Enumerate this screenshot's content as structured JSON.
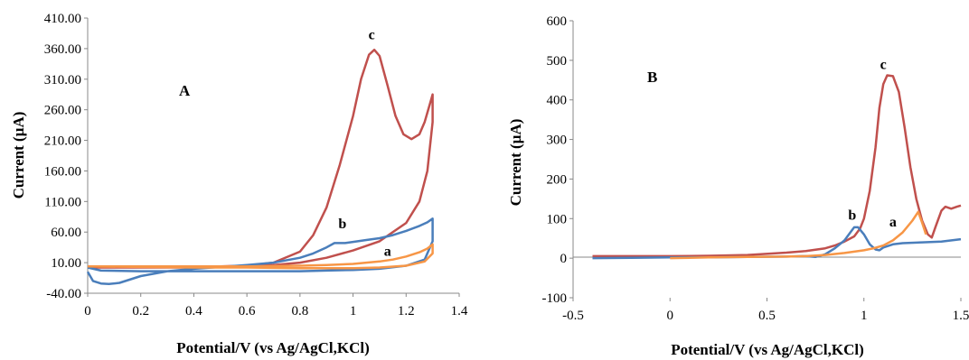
{
  "chart_data": [
    {
      "panel": "A",
      "type": "line",
      "xlabel": "Potential/V (vs Ag/AgCl,KCl)",
      "ylabel": "Current (µA)",
      "xlim": [
        0,
        1.4
      ],
      "ylim": [
        -40,
        410
      ],
      "x_ticks": [
        "0",
        "0.2",
        "0.4",
        "0.6",
        "0.8",
        "1",
        "1.2",
        "1.4"
      ],
      "y_ticks": [
        "-40.00",
        "10.00",
        "60.00",
        "110.00",
        "160.00",
        "210.00",
        "260.00",
        "310.00",
        "360.00",
        "410.00"
      ],
      "grid": false,
      "series": [
        {
          "name": "c",
          "color": "#c0504d",
          "points": [
            [
              0.0,
              2
            ],
            [
              0.1,
              3
            ],
            [
              0.2,
              3
            ],
            [
              0.3,
              3
            ],
            [
              0.4,
              3
            ],
            [
              0.5,
              4
            ],
            [
              0.6,
              5
            ],
            [
              0.7,
              10
            ],
            [
              0.8,
              28
            ],
            [
              0.85,
              55
            ],
            [
              0.9,
              100
            ],
            [
              0.95,
              170
            ],
            [
              1.0,
              250
            ],
            [
              1.03,
              310
            ],
            [
              1.06,
              350
            ],
            [
              1.08,
              358
            ],
            [
              1.1,
              348
            ],
            [
              1.13,
              300
            ],
            [
              1.16,
              250
            ],
            [
              1.19,
              220
            ],
            [
              1.22,
              212
            ],
            [
              1.25,
              220
            ],
            [
              1.27,
              240
            ],
            [
              1.29,
              270
            ],
            [
              1.3,
              285
            ],
            [
              1.3,
              240
            ],
            [
              1.28,
              160
            ],
            [
              1.25,
              110
            ],
            [
              1.2,
              75
            ],
            [
              1.1,
              45
            ],
            [
              1.0,
              30
            ],
            [
              0.9,
              18
            ],
            [
              0.8,
              10
            ],
            [
              0.7,
              6
            ],
            [
              0.6,
              4
            ],
            [
              0.5,
              3
            ],
            [
              0.4,
              2
            ],
            [
              0.3,
              2
            ],
            [
              0.2,
              2
            ],
            [
              0.1,
              2
            ],
            [
              0.0,
              2
            ]
          ],
          "label": "c",
          "label_pos": [
            1.07,
            375
          ]
        },
        {
          "name": "b",
          "color": "#4a7ebb",
          "points": [
            [
              0.0,
              -5
            ],
            [
              0.02,
              -20
            ],
            [
              0.05,
              -24
            ],
            [
              0.08,
              -25
            ],
            [
              0.12,
              -23
            ],
            [
              0.2,
              -12
            ],
            [
              0.3,
              -4
            ],
            [
              0.4,
              0
            ],
            [
              0.5,
              3
            ],
            [
              0.6,
              6
            ],
            [
              0.7,
              10
            ],
            [
              0.8,
              18
            ],
            [
              0.85,
              25
            ],
            [
              0.9,
              35
            ],
            [
              0.93,
              42
            ],
            [
              0.97,
              42
            ],
            [
              1.0,
              44
            ],
            [
              1.05,
              47
            ],
            [
              1.1,
              50
            ],
            [
              1.15,
              55
            ],
            [
              1.2,
              62
            ],
            [
              1.25,
              70
            ],
            [
              1.28,
              76
            ],
            [
              1.3,
              82
            ],
            [
              1.3,
              45
            ],
            [
              1.27,
              15
            ],
            [
              1.2,
              5
            ],
            [
              1.1,
              0
            ],
            [
              1.0,
              -2
            ],
            [
              0.9,
              -3
            ],
            [
              0.8,
              -4
            ],
            [
              0.6,
              -4
            ],
            [
              0.4,
              -4
            ],
            [
              0.2,
              -4
            ],
            [
              0.05,
              -3
            ],
            [
              0.0,
              2
            ]
          ],
          "label": "b",
          "label_pos": [
            0.96,
            66
          ]
        },
        {
          "name": "a",
          "color": "#f79646",
          "points": [
            [
              0.0,
              4
            ],
            [
              0.2,
              4
            ],
            [
              0.4,
              4
            ],
            [
              0.6,
              4
            ],
            [
              0.8,
              5
            ],
            [
              0.9,
              6
            ],
            [
              1.0,
              8
            ],
            [
              1.05,
              10
            ],
            [
              1.1,
              12
            ],
            [
              1.15,
              15
            ],
            [
              1.2,
              20
            ],
            [
              1.25,
              27
            ],
            [
              1.28,
              33
            ],
            [
              1.3,
              40
            ],
            [
              1.3,
              25
            ],
            [
              1.27,
              12
            ],
            [
              1.2,
              5
            ],
            [
              1.1,
              2
            ],
            [
              1.0,
              1
            ],
            [
              0.8,
              1
            ],
            [
              0.6,
              2
            ],
            [
              0.4,
              2
            ],
            [
              0.2,
              3
            ],
            [
              0.0,
              4
            ]
          ],
          "label": "a",
          "label_pos": [
            1.13,
            21
          ]
        }
      ]
    },
    {
      "panel": "B",
      "type": "line",
      "xlabel": "Potential/V (vs Ag/AgCl,KCl)",
      "ylabel": "Current (µA)",
      "xlim": [
        -0.5,
        1.5
      ],
      "ylim": [
        -100,
        600
      ],
      "x_ticks": [
        "-0.5",
        "0",
        "0.5",
        "1",
        "1.5"
      ],
      "y_ticks": [
        "-100",
        "0",
        "100",
        "200",
        "300",
        "400",
        "500",
        "600"
      ],
      "grid": false,
      "series": [
        {
          "name": "c",
          "color": "#c0504d",
          "points": [
            [
              -0.4,
              5
            ],
            [
              -0.2,
              5
            ],
            [
              0.0,
              5
            ],
            [
              0.2,
              6
            ],
            [
              0.4,
              8
            ],
            [
              0.6,
              14
            ],
            [
              0.7,
              18
            ],
            [
              0.8,
              25
            ],
            [
              0.85,
              32
            ],
            [
              0.9,
              42
            ],
            [
              0.95,
              55
            ],
            [
              0.98,
              75
            ],
            [
              1.0,
              100
            ],
            [
              1.03,
              170
            ],
            [
              1.06,
              280
            ],
            [
              1.08,
              380
            ],
            [
              1.1,
              440
            ],
            [
              1.12,
              462
            ],
            [
              1.15,
              460
            ],
            [
              1.18,
              420
            ],
            [
              1.21,
              330
            ],
            [
              1.24,
              230
            ],
            [
              1.27,
              150
            ],
            [
              1.3,
              95
            ],
            [
              1.33,
              60
            ],
            [
              1.35,
              52
            ],
            [
              1.37,
              80
            ],
            [
              1.4,
              120
            ],
            [
              1.42,
              130
            ],
            [
              1.45,
              125
            ],
            [
              1.48,
              130
            ],
            [
              1.5,
              133
            ]
          ],
          "label": "c",
          "label_pos": [
            1.1,
            478
          ]
        },
        {
          "name": "b",
          "color": "#4a7ebb",
          "points": [
            [
              -0.4,
              0
            ],
            [
              -0.2,
              1
            ],
            [
              0.0,
              2
            ],
            [
              0.2,
              2
            ],
            [
              0.4,
              3
            ],
            [
              0.6,
              4
            ],
            [
              0.7,
              5
            ],
            [
              0.75,
              3
            ],
            [
              0.8,
              10
            ],
            [
              0.85,
              25
            ],
            [
              0.9,
              45
            ],
            [
              0.93,
              65
            ],
            [
              0.95,
              78
            ],
            [
              0.97,
              78
            ],
            [
              1.0,
              60
            ],
            [
              1.03,
              35
            ],
            [
              1.06,
              22
            ],
            [
              1.08,
              20
            ],
            [
              1.1,
              27
            ],
            [
              1.15,
              35
            ],
            [
              1.2,
              38
            ],
            [
              1.3,
              40
            ],
            [
              1.4,
              42
            ],
            [
              1.5,
              48
            ]
          ],
          "label": "b",
          "label_pos": [
            0.94,
            97
          ]
        },
        {
          "name": "a",
          "color": "#f79646",
          "points": [
            [
              0.0,
              0
            ],
            [
              0.2,
              2
            ],
            [
              0.4,
              3
            ],
            [
              0.6,
              4
            ],
            [
              0.7,
              5
            ],
            [
              0.8,
              8
            ],
            [
              0.9,
              13
            ],
            [
              1.0,
              20
            ],
            [
              1.05,
              25
            ],
            [
              1.1,
              32
            ],
            [
              1.15,
              45
            ],
            [
              1.2,
              65
            ],
            [
              1.25,
              95
            ],
            [
              1.28,
              117
            ],
            [
              1.3,
              90
            ],
            [
              1.32,
              60
            ]
          ],
          "label": "a",
          "label_pos": [
            1.15,
            80
          ]
        }
      ]
    }
  ]
}
